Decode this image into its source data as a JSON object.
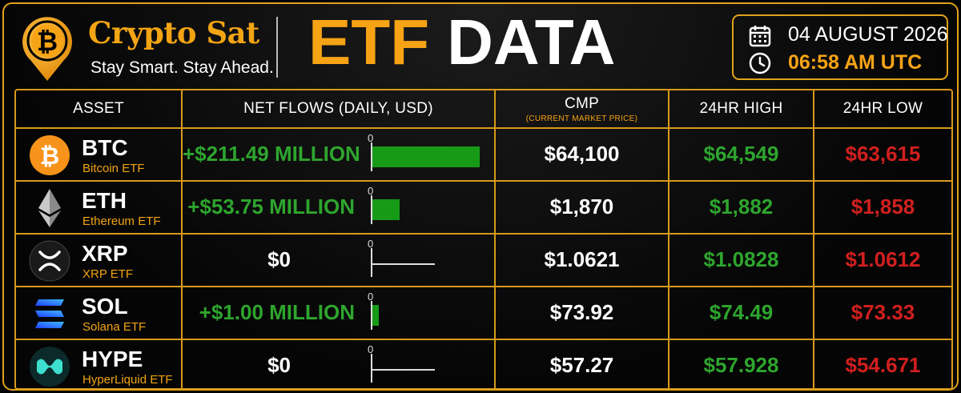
{
  "brand": {
    "name": "Crypto Sat",
    "tagline": "Stay Smart. Stay Ahead.",
    "logo_icon": "bitcoin-pin-icon",
    "logo_color": "#f2a414"
  },
  "title": {
    "part1": "ETF",
    "part2": "DATA"
  },
  "datetime": {
    "date": "04 AUGUST 2026",
    "time": "06:58 AM UTC",
    "date_icon": "calendar-icon",
    "time_icon": "clock-icon"
  },
  "colors": {
    "accent": "#f7a316",
    "border": "#d89a1a",
    "positive": "#2ea52e",
    "negative": "#d11f1f",
    "bar": "#179b17"
  },
  "table": {
    "headers": {
      "asset": "ASSET",
      "net_flows": "NET FLOWS (DAILY, USD)",
      "cmp": "CMP",
      "cmp_sub": "(CURRENT MARKET PRICE)",
      "high": "24HR HIGH",
      "low": "24HR LOW"
    },
    "zero_label": "0",
    "rows": [
      {
        "ticker": "BTC",
        "name": "Bitcoin ETF",
        "icon": "bitcoin-icon",
        "net_flow": "+$211.49 MILLION",
        "flow_value": 211.49,
        "cmp": "$64,100",
        "high": "$64,549",
        "low": "$63,615"
      },
      {
        "ticker": "ETH",
        "name": "Ethereum ETF",
        "icon": "ethereum-icon",
        "net_flow": "+$53.75 MILLION",
        "flow_value": 53.75,
        "cmp": "$1,870",
        "high": "$1,882",
        "low": "$1,858"
      },
      {
        "ticker": "XRP",
        "name": "XRP ETF",
        "icon": "xrp-icon",
        "net_flow": "$0",
        "flow_value": 0,
        "cmp": "$1.0621",
        "high": "$1.0828",
        "low": "$1.0612"
      },
      {
        "ticker": "SOL",
        "name": "Solana ETF",
        "icon": "solana-icon",
        "net_flow": "+$1.00 MILLION",
        "flow_value": 1.0,
        "cmp": "$73.92",
        "high": "$74.49",
        "low": "$73.33"
      },
      {
        "ticker": "HYPE",
        "name": "HyperLiquid ETF",
        "icon": "hyperliquid-icon",
        "net_flow": "$0",
        "flow_value": 0,
        "cmp": "$57.27",
        "high": "$57.928",
        "low": "$54.671"
      }
    ]
  }
}
